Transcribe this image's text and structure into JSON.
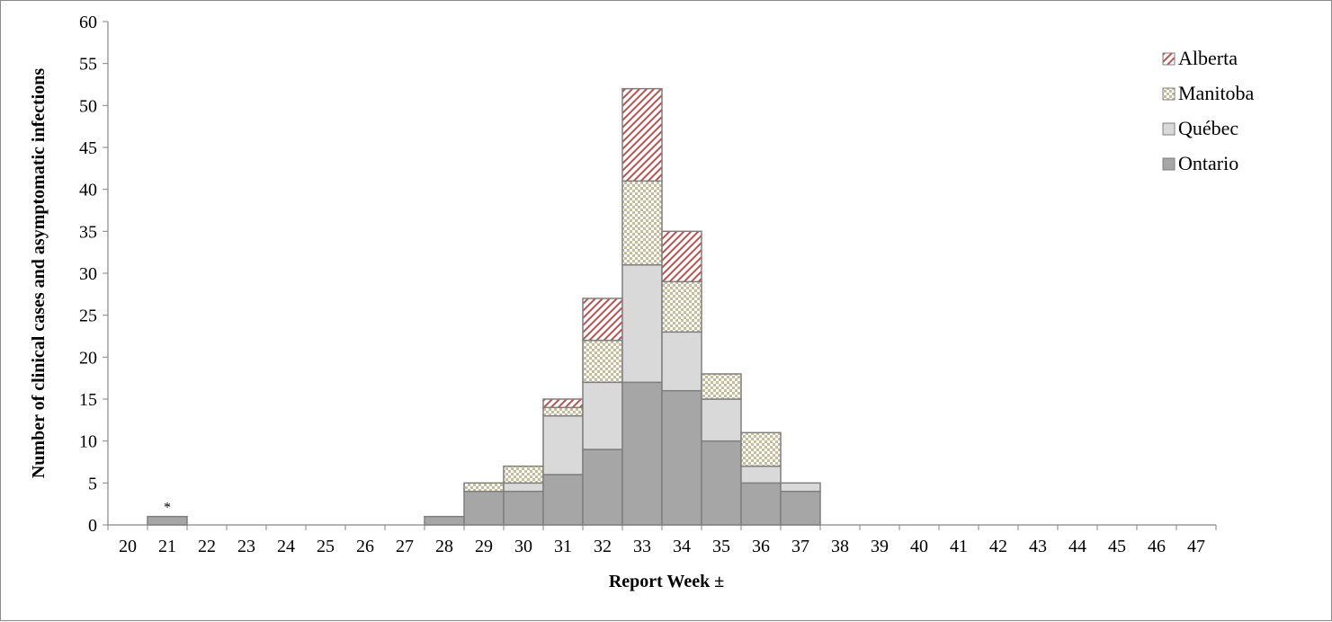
{
  "chart_data": {
    "type": "bar",
    "stacked": true,
    "title": "",
    "xlabel": "Report Week ±",
    "ylabel": "Number of clinical  cases and asymptomatic infections",
    "ylim": [
      0,
      60
    ],
    "ytick_step": 5,
    "categories": [
      "20",
      "21",
      "22",
      "23",
      "24",
      "25",
      "26",
      "27",
      "28",
      "29",
      "30",
      "31",
      "32",
      "33",
      "34",
      "35",
      "36",
      "37",
      "38",
      "39",
      "40",
      "41",
      "42",
      "43",
      "44",
      "45",
      "46",
      "47"
    ],
    "series": [
      {
        "name": "Ontario",
        "color": "#a6a6a6",
        "pattern": "solid",
        "values": [
          0,
          1,
          0,
          0,
          0,
          0,
          0,
          0,
          1,
          4,
          4,
          6,
          9,
          17,
          16,
          10,
          5,
          4,
          0,
          0,
          0,
          0,
          0,
          0,
          0,
          0,
          0,
          0
        ]
      },
      {
        "name": "Québec",
        "color": "#d9d9d9",
        "pattern": "solid",
        "values": [
          0,
          0,
          0,
          0,
          0,
          0,
          0,
          0,
          0,
          0,
          1,
          7,
          8,
          14,
          7,
          5,
          2,
          1,
          0,
          0,
          0,
          0,
          0,
          0,
          0,
          0,
          0,
          0
        ]
      },
      {
        "name": "Manitoba",
        "color": "#c4bd97",
        "pattern": "checker",
        "values": [
          0,
          0,
          0,
          0,
          0,
          0,
          0,
          0,
          0,
          1,
          2,
          1,
          5,
          10,
          6,
          3,
          4,
          0,
          0,
          0,
          0,
          0,
          0,
          0,
          0,
          0,
          0,
          0
        ]
      },
      {
        "name": "Alberta",
        "color": "#c0504d",
        "pattern": "diagonal",
        "values": [
          0,
          0,
          0,
          0,
          0,
          0,
          0,
          0,
          0,
          0,
          0,
          1,
          5,
          11,
          6,
          0,
          0,
          0,
          0,
          0,
          0,
          0,
          0,
          0,
          0,
          0,
          0,
          0
        ]
      }
    ],
    "legend": {
      "placement": "top-right",
      "order": [
        "Alberta",
        "Manitoba",
        "Québec",
        "Ontario"
      ]
    },
    "annotations": [
      {
        "category": "21",
        "text": "*"
      }
    ],
    "grid": false
  }
}
